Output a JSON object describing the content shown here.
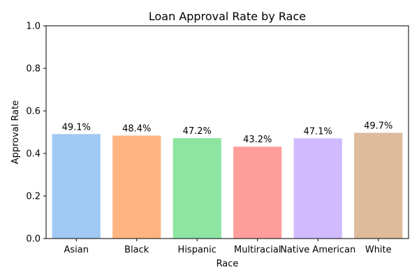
{
  "chart_data": {
    "type": "bar",
    "title": "Loan Approval Rate by Race",
    "xlabel": "Race",
    "ylabel": "Approval Rate",
    "ylim": [
      0,
      1
    ],
    "yticks": [
      "0.0",
      "0.2",
      "0.4",
      "0.6",
      "0.8",
      "1.0"
    ],
    "grid": false,
    "categories": [
      "Asian",
      "Black",
      "Hispanic",
      "Multiracial",
      "Native American",
      "White"
    ],
    "values": [
      0.491,
      0.484,
      0.472,
      0.432,
      0.471,
      0.497
    ],
    "data_labels": [
      "49.1%",
      "48.4%",
      "47.2%",
      "43.2%",
      "47.1%",
      "49.7%"
    ],
    "colors": [
      "#a1c9f4",
      "#ffb482",
      "#8de5a1",
      "#ff9f9b",
      "#d0bbff",
      "#debb9b"
    ]
  }
}
